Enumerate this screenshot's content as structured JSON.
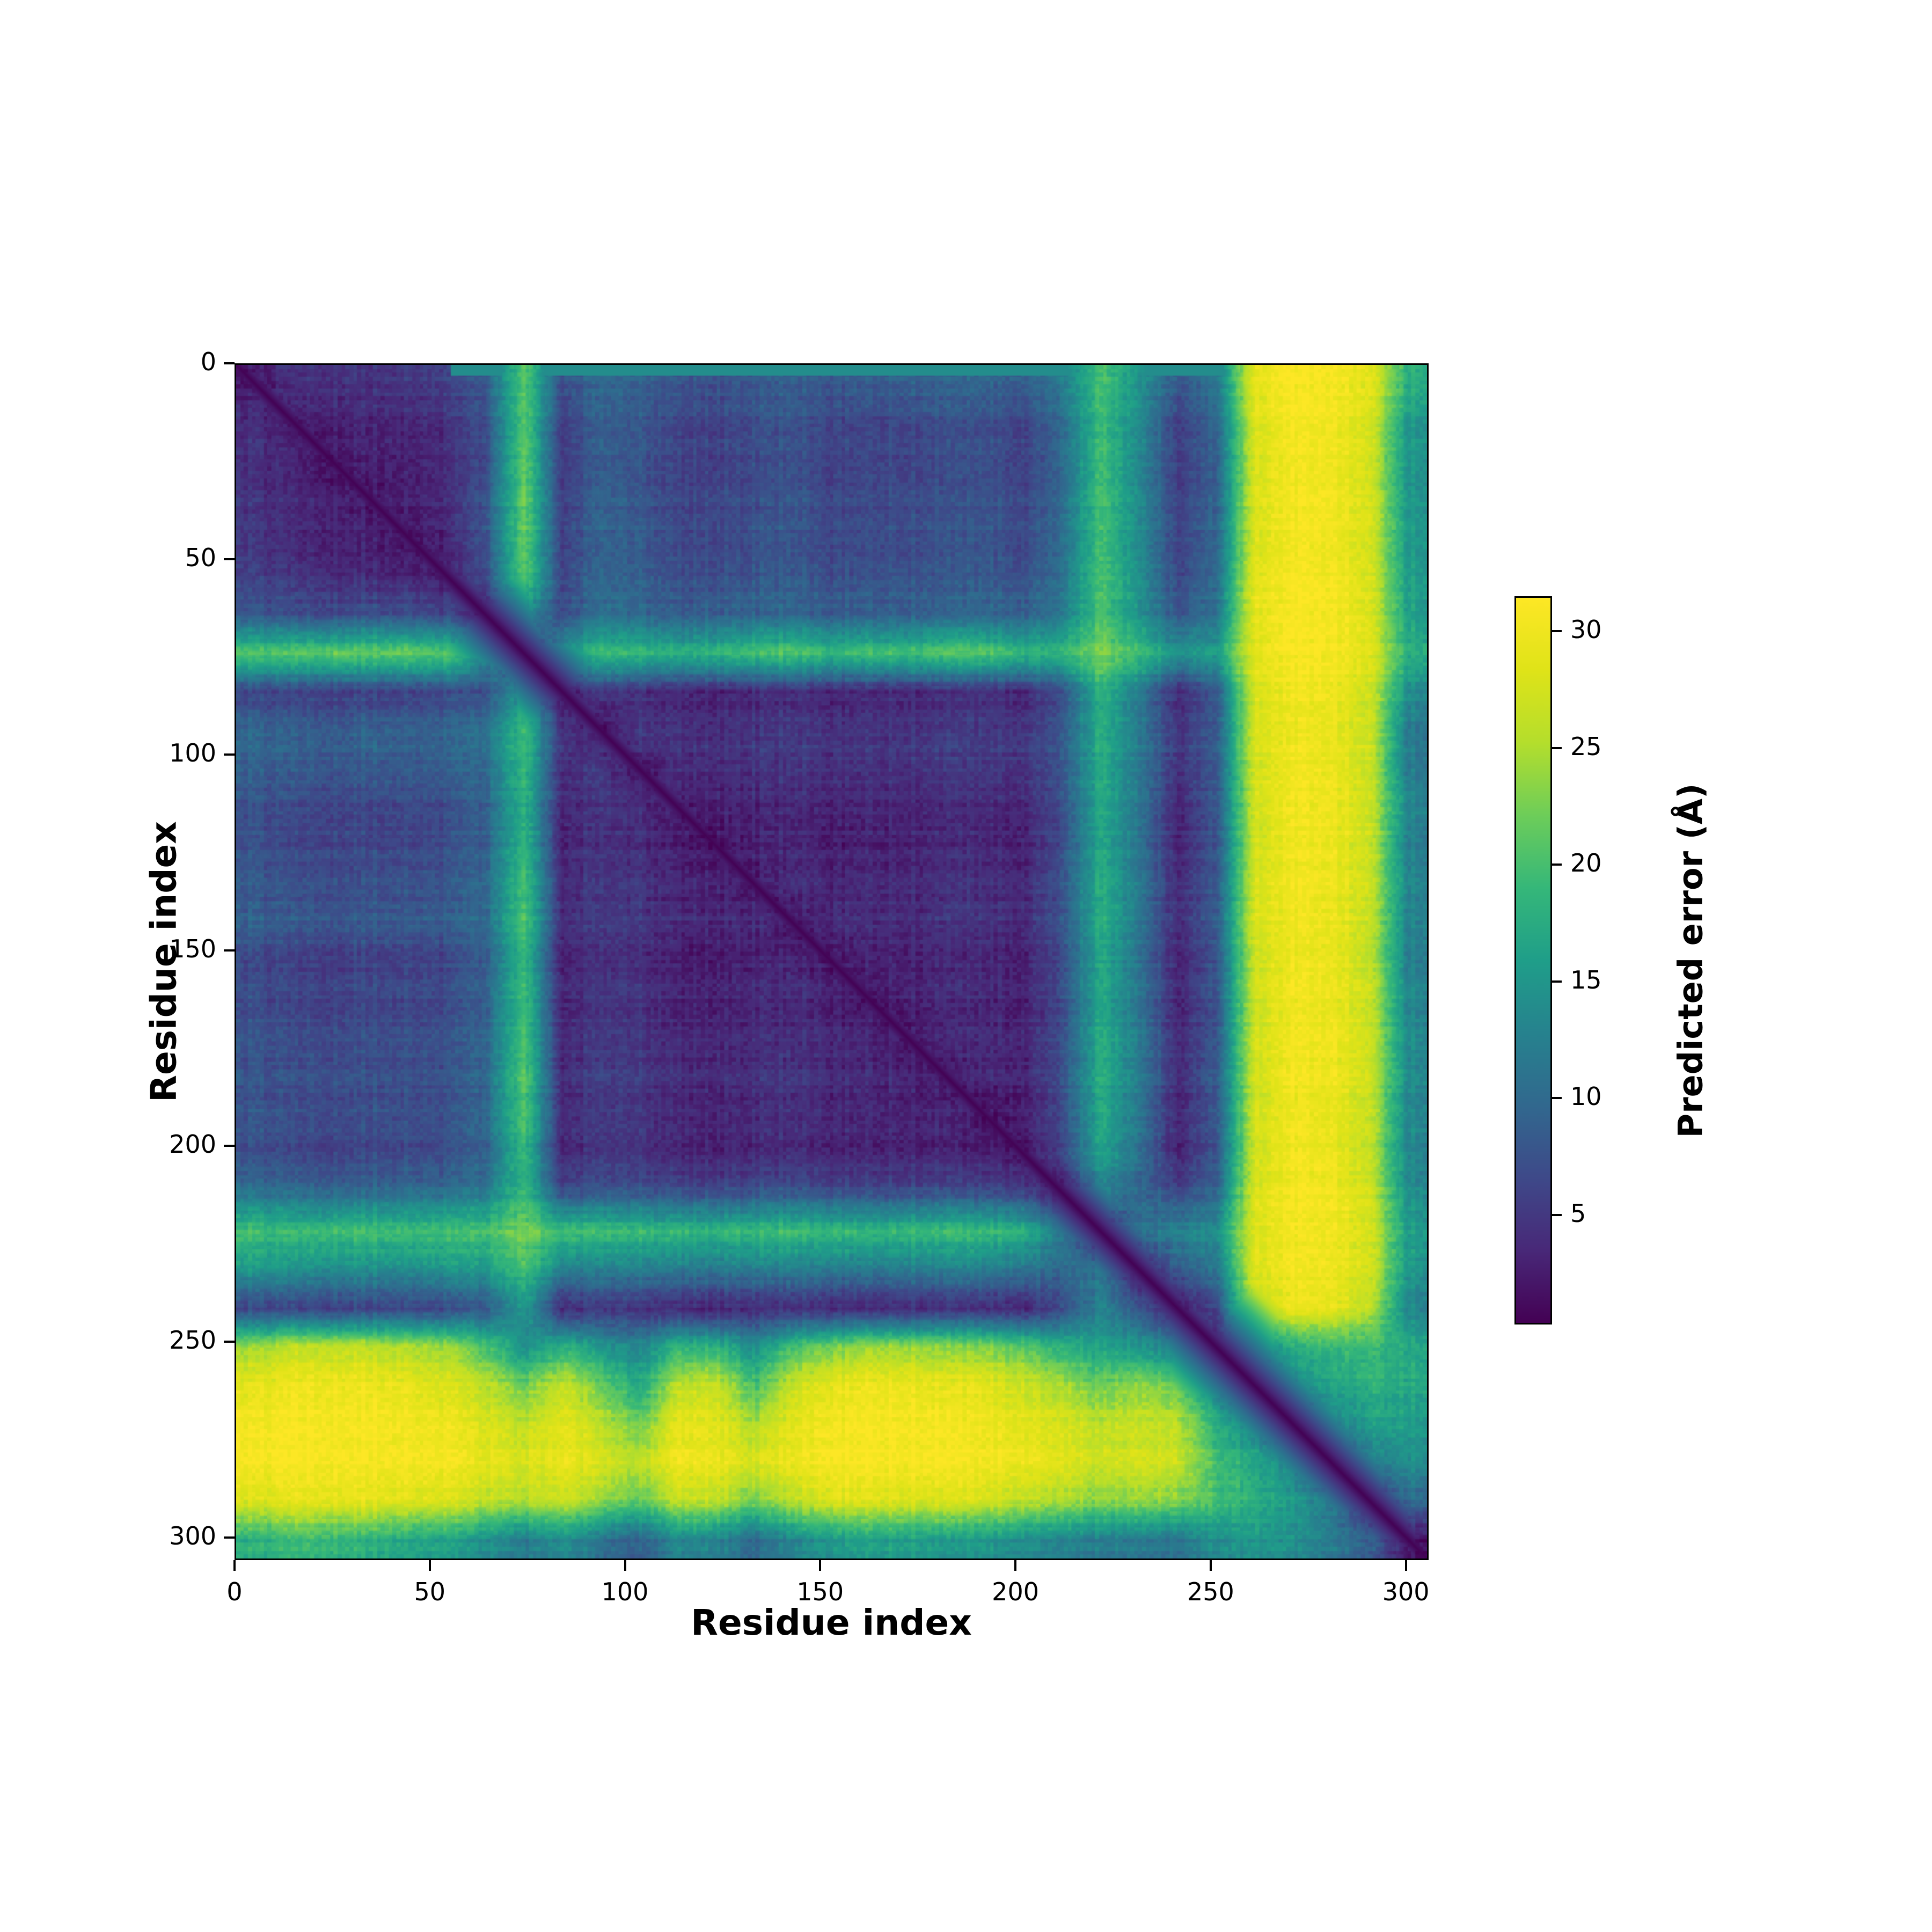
{
  "figure": {
    "background": "#ffffff"
  },
  "chart_data": {
    "type": "heatmap",
    "title": "",
    "xlabel": "Residue index",
    "ylabel": "Residue index",
    "x_ticks": [
      0,
      50,
      100,
      150,
      200,
      250,
      300
    ],
    "y_ticks": [
      0,
      50,
      100,
      150,
      200,
      250,
      300
    ],
    "n_residues": 305,
    "grid": false,
    "colorbar": {
      "label": "Predicted error (Å)",
      "ticks": [
        5,
        10,
        15,
        20,
        25,
        30
      ],
      "vmin": 0.3,
      "vmax": 31.5,
      "colormap": "viridis",
      "stops": [
        "#440154",
        "#482878",
        "#3e4989",
        "#31688e",
        "#26828e",
        "#1f9e89",
        "#35b779",
        "#6dcd59",
        "#b4de2c",
        "#dfe318",
        "#fde725"
      ]
    },
    "matrix_bins": 31,
    "matrix_units": "angstrom",
    "matrix_note": "31x31 downsampled PAE grid, ~9.84-residue bins, rows=aligned residue, cols=scored residue",
    "matrix": [
      [
        2,
        4,
        4.5,
        4.5,
        5,
        5.5,
        8,
        21,
        7,
        10,
        9,
        7.5,
        7.5,
        8,
        9,
        8,
        8.5,
        9,
        9,
        9.5,
        8.5,
        12,
        20,
        15,
        8,
        11,
        29,
        31,
        31,
        29,
        18
      ],
      [
        4,
        2,
        3,
        3.2,
        3.5,
        4,
        7,
        21,
        5.5,
        9,
        8,
        6,
        6,
        7,
        7.5,
        6,
        6,
        6.5,
        7,
        7,
        6,
        10,
        19,
        14,
        5.5,
        9,
        28,
        30.5,
        30.5,
        28,
        15
      ],
      [
        4.5,
        3,
        2,
        3,
        3.2,
        3.8,
        7,
        22,
        5.5,
        9,
        8,
        6,
        6,
        7,
        7.5,
        6,
        6.5,
        6.5,
        7,
        7.5,
        6,
        10,
        20,
        14,
        5.5,
        9,
        28,
        30.5,
        30.5,
        28,
        15
      ],
      [
        4.5,
        3.2,
        3,
        2,
        3,
        3.5,
        7.5,
        22,
        5.5,
        9.5,
        8,
        6,
        6.5,
        7,
        8,
        6,
        6.5,
        7,
        7,
        7.5,
        6.5,
        10,
        20,
        14,
        6,
        9,
        28,
        30.5,
        30.5,
        28,
        15
      ],
      [
        5,
        3.5,
        3.2,
        3,
        2,
        3.2,
        7.5,
        22,
        6,
        9.5,
        8.5,
        6.5,
        6.5,
        7.5,
        8,
        6.5,
        7,
        7,
        7.5,
        8,
        6.5,
        10.5,
        20,
        14,
        6,
        9.5,
        28,
        30.5,
        30.5,
        28,
        15.5
      ],
      [
        5.5,
        4,
        3.8,
        3.5,
        3.2,
        2,
        6.5,
        21,
        6,
        9.5,
        8.5,
        6.5,
        7,
        7.5,
        8,
        6.5,
        7,
        7.5,
        7.5,
        8,
        7,
        10.5,
        20,
        14.5,
        6,
        9.5,
        28.5,
        30.5,
        30.5,
        28,
        15.5
      ],
      [
        8,
        7,
        7,
        7.5,
        7.5,
        6.5,
        2,
        14,
        7,
        11,
        10,
        8.5,
        9,
        9.5,
        10,
        8.5,
        9,
        9,
        9.5,
        10,
        9,
        12,
        20,
        15,
        8,
        11,
        29,
        31,
        31,
        28.5,
        16
      ],
      [
        21,
        21,
        22,
        22,
        22,
        21,
        14,
        3,
        15,
        20,
        19,
        18,
        19,
        20,
        21,
        19,
        20,
        20,
        21,
        21,
        19,
        19,
        23,
        20,
        15,
        16,
        29,
        31,
        31,
        29,
        18
      ],
      [
        6,
        5.5,
        5.5,
        5.5,
        6,
        6,
        7,
        15,
        2,
        5,
        4,
        3,
        3,
        3.5,
        4,
        3,
        3.2,
        3.5,
        3.5,
        4,
        3.2,
        7,
        18,
        12,
        3.5,
        7.5,
        27.5,
        30,
        30,
        27,
        14
      ],
      [
        10,
        9,
        9,
        9.5,
        9.5,
        9.5,
        11,
        20,
        5,
        2,
        5.5,
        4.5,
        4.5,
        5,
        5.5,
        4.5,
        5,
        5,
        5.5,
        5.5,
        5,
        8.5,
        18,
        12.5,
        5,
        8.5,
        28,
        30,
        30,
        27.5,
        12
      ],
      [
        9,
        8,
        8,
        8.5,
        8.5,
        8.5,
        10,
        19,
        4,
        5.5,
        2,
        4,
        4,
        4.5,
        5,
        4,
        4.5,
        4.5,
        5,
        5,
        4.5,
        8,
        17.5,
        12,
        4.5,
        8,
        27.5,
        30,
        30,
        27,
        12
      ],
      [
        7,
        6,
        6,
        6,
        6.5,
        6.5,
        8.5,
        18,
        3,
        4.5,
        4,
        1.8,
        2.5,
        3,
        3.5,
        2.5,
        3,
        3,
        3.5,
        3.5,
        3,
        7,
        17,
        11.5,
        3,
        7.5,
        27,
        30,
        30,
        27,
        13
      ],
      [
        7.5,
        6,
        6.5,
        6.5,
        6.5,
        7,
        9,
        19,
        3,
        4.5,
        4,
        2.5,
        1.8,
        3,
        3.5,
        2.5,
        3,
        3.2,
        3.5,
        3.5,
        3,
        7,
        17,
        11.5,
        3,
        7.5,
        27,
        30,
        30,
        27,
        12.5
      ],
      [
        8,
        7,
        7,
        7,
        7.5,
        7.5,
        9.5,
        20,
        3.5,
        5,
        4.5,
        3,
        3,
        2,
        4,
        3,
        3.5,
        3.5,
        4,
        4,
        3.5,
        7.5,
        17.5,
        12,
        3.5,
        8,
        27.5,
        30,
        30,
        27,
        13
      ],
      [
        9,
        8,
        8,
        8.5,
        8.5,
        8.5,
        10,
        21,
        4,
        5.5,
        5,
        3.5,
        3.5,
        4,
        2,
        3.5,
        4,
        4,
        4.5,
        4.5,
        4,
        8,
        18,
        12,
        4,
        8.5,
        28,
        30,
        30,
        27,
        13
      ],
      [
        6.5,
        5.5,
        5.5,
        6,
        6,
        6,
        8.5,
        19,
        3,
        4.5,
        4,
        2.5,
        2.5,
        3,
        3.5,
        1.8,
        2.8,
        3,
        3.2,
        3.5,
        3,
        7,
        17,
        11.5,
        3,
        7.5,
        27,
        30,
        30,
        26.5,
        12.5
      ],
      [
        7,
        6,
        6,
        6.5,
        6.5,
        6.5,
        9,
        20,
        3.2,
        5,
        4.5,
        3,
        3,
        3.5,
        4,
        2.8,
        1.8,
        3,
        3.5,
        3.5,
        3,
        7,
        17,
        11.5,
        3.2,
        7.5,
        27,
        30,
        30,
        27,
        13
      ],
      [
        7.5,
        6.5,
        6.5,
        7,
        7,
        7,
        9,
        20,
        3.5,
        5,
        4.5,
        3,
        3.2,
        3.5,
        4,
        3,
        3,
        1.8,
        3,
        3.5,
        3,
        7,
        17.5,
        12,
        3.5,
        7.5,
        27,
        30,
        30,
        27,
        13.5
      ],
      [
        7.5,
        6.5,
        7,
        7,
        7,
        7,
        9.5,
        21,
        3.5,
        5.5,
        5,
        3.5,
        3.5,
        4,
        4.5,
        3.2,
        3.5,
        3,
        1.8,
        3.2,
        3,
        7,
        17.5,
        12,
        3.5,
        8,
        27,
        30,
        30,
        27,
        13.5
      ],
      [
        8,
        7,
        7,
        7.5,
        7.5,
        7.5,
        10,
        21,
        4,
        5.5,
        5,
        3.5,
        3.5,
        4,
        4.5,
        3.5,
        3.5,
        3.5,
        3.2,
        1.8,
        2.8,
        7,
        17.5,
        12,
        3.5,
        8,
        27.5,
        30,
        30,
        27,
        13.5
      ],
      [
        7,
        6,
        6,
        6.5,
        6.5,
        7,
        9,
        19,
        3.2,
        5,
        4.5,
        3,
        3,
        3.5,
        4,
        3,
        3,
        3,
        3,
        2.8,
        1.8,
        6,
        16.5,
        11,
        3,
        7.5,
        27,
        30,
        30,
        26.5,
        13
      ],
      [
        11,
        10,
        10,
        10,
        10.5,
        10.5,
        12,
        19,
        7,
        8.5,
        8,
        7,
        7,
        7.5,
        8,
        7,
        7,
        7,
        7,
        7,
        6,
        2,
        12,
        10,
        6.5,
        9.5,
        28,
        30.5,
        30.5,
        27.5,
        14
      ],
      [
        20,
        19,
        20,
        20,
        20,
        20,
        20,
        23,
        20,
        20,
        19.5,
        19,
        19,
        19.5,
        20,
        19,
        19,
        19.5,
        19.5,
        19.5,
        18.5,
        12,
        3,
        11,
        13,
        14,
        28.5,
        30.5,
        30.5,
        28,
        16
      ],
      [
        15,
        14,
        14,
        14,
        14,
        14.5,
        15,
        20,
        12,
        12.5,
        12,
        11.5,
        11.5,
        12,
        12,
        11.5,
        11.5,
        12,
        12,
        12,
        11,
        10,
        11,
        2,
        8,
        11,
        28,
        30,
        30,
        27.5,
        15
      ],
      [
        6,
        5.5,
        5.5,
        6,
        6,
        6,
        8,
        15,
        3.5,
        5,
        4.5,
        3,
        3,
        3.5,
        4,
        3,
        3.2,
        3.5,
        3.5,
        3.5,
        3,
        6.5,
        13,
        8,
        1.8,
        6,
        26,
        29.5,
        29.5,
        26,
        13
      ],
      [
        24,
        26,
        26,
        26,
        25,
        24,
        20,
        14,
        18,
        15,
        13,
        18,
        18,
        14,
        20,
        22,
        24,
        24,
        23,
        23,
        21,
        18,
        16,
        15,
        12,
        2.5,
        13,
        17,
        19,
        19,
        17
      ],
      [
        29,
        30,
        30,
        30,
        29.5,
        28,
        26,
        22,
        27,
        22,
        17,
        26,
        27,
        20,
        27,
        29,
        30,
        30,
        29,
        29,
        27,
        25,
        22,
        24,
        22,
        13,
        3,
        13,
        17,
        18,
        17
      ],
      [
        30.5,
        31,
        31,
        31,
        30.5,
        30,
        28,
        26,
        29,
        26,
        22,
        29,
        29,
        25,
        29,
        30.5,
        31,
        31,
        30.5,
        30,
        29,
        28,
        26,
        27,
        26,
        18,
        13,
        3,
        13,
        16,
        16
      ],
      [
        31,
        31,
        31,
        31,
        31,
        30.5,
        29,
        28,
        30,
        28,
        26,
        30,
        30,
        28,
        30,
        31,
        31,
        31,
        31,
        30.5,
        30,
        29,
        27,
        28,
        27,
        20,
        17,
        13,
        3,
        12,
        14
      ],
      [
        28,
        29,
        29,
        29,
        28.5,
        28,
        26,
        25,
        27,
        24,
        21,
        26,
        26,
        22,
        26,
        28,
        28.5,
        28,
        28,
        27.5,
        26,
        25,
        23,
        24,
        23,
        20,
        18,
        15,
        12,
        3,
        10
      ],
      [
        18,
        19,
        19,
        18,
        17,
        16,
        14,
        12,
        14,
        11,
        9,
        13,
        13,
        10,
        13,
        15,
        16,
        16,
        15,
        15,
        14,
        13,
        12,
        12,
        11,
        14,
        15,
        14,
        12,
        9,
        2
      ]
    ],
    "diagonal": {
      "base": 0.4,
      "slope": 1.05
    },
    "extra_rows": [
      {
        "row": 1,
        "halfwidth": 1.8,
        "value": 14,
        "from_col": 55
      }
    ],
    "texture": {
      "pixel_noise": 1.1,
      "row_noise": 0.6,
      "col_noise": 0.6,
      "seed": 11
    }
  }
}
